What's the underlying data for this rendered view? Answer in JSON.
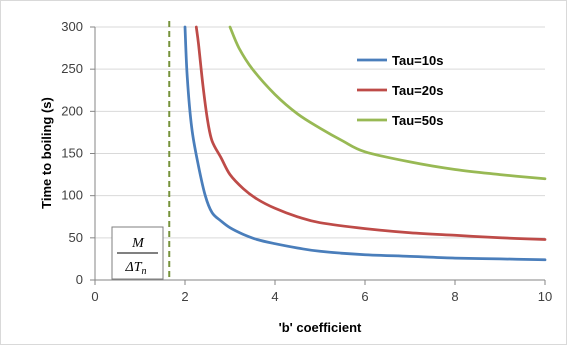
{
  "chart_data": {
    "type": "line",
    "xlabel": "'b' coefficient",
    "ylabel": "Time to boiling (s)",
    "xlim": [
      0,
      10
    ],
    "ylim": [
      0,
      300
    ],
    "xticks": [
      0,
      2,
      4,
      6,
      8,
      10
    ],
    "yticks": [
      0,
      50,
      100,
      150,
      200,
      250,
      300
    ],
    "grid": "horizontal",
    "legend_position": "top-right",
    "series": [
      {
        "name": "Tau=10s",
        "color": "#4a7ebb",
        "points": [
          [
            2.0,
            300
          ],
          [
            2.05,
            240
          ],
          [
            2.15,
            180
          ],
          [
            2.3,
            135
          ],
          [
            2.45,
            100
          ],
          [
            2.6,
            80
          ],
          [
            2.8,
            70
          ],
          [
            3.0,
            62
          ],
          [
            3.3,
            54
          ],
          [
            3.6,
            48
          ],
          [
            4.0,
            43
          ],
          [
            4.5,
            38
          ],
          [
            5.0,
            34
          ],
          [
            6.0,
            30
          ],
          [
            7.0,
            28
          ],
          [
            8.0,
            26
          ],
          [
            9.0,
            25
          ],
          [
            10.0,
            24
          ]
        ]
      },
      {
        "name": "Tau=20s",
        "color": "#be4b48",
        "points": [
          [
            2.25,
            300
          ],
          [
            2.3,
            280
          ],
          [
            2.4,
            230
          ],
          [
            2.5,
            190
          ],
          [
            2.6,
            165
          ],
          [
            2.8,
            145
          ],
          [
            3.0,
            125
          ],
          [
            3.3,
            108
          ],
          [
            3.6,
            96
          ],
          [
            4.0,
            85
          ],
          [
            4.5,
            75
          ],
          [
            5.0,
            68
          ],
          [
            6.0,
            61
          ],
          [
            7.0,
            56
          ],
          [
            8.0,
            53
          ],
          [
            9.0,
            50
          ],
          [
            10.0,
            48
          ]
        ]
      },
      {
        "name": "Tau=50s",
        "color": "#98b954",
        "points": [
          [
            3.0,
            300
          ],
          [
            3.2,
            275
          ],
          [
            3.5,
            250
          ],
          [
            4.0,
            220
          ],
          [
            4.5,
            197
          ],
          [
            5.0,
            180
          ],
          [
            5.5,
            165
          ],
          [
            6.0,
            152
          ],
          [
            7.0,
            140
          ],
          [
            8.0,
            131
          ],
          [
            9.0,
            125
          ],
          [
            10.0,
            120
          ]
        ]
      }
    ],
    "reference_line": {
      "x": 1.65,
      "color": "#77933c",
      "style": "dashed"
    },
    "annotation": {
      "numerator": "M",
      "denominator_prefix": "ΔT",
      "denominator_subscript": "n"
    }
  }
}
